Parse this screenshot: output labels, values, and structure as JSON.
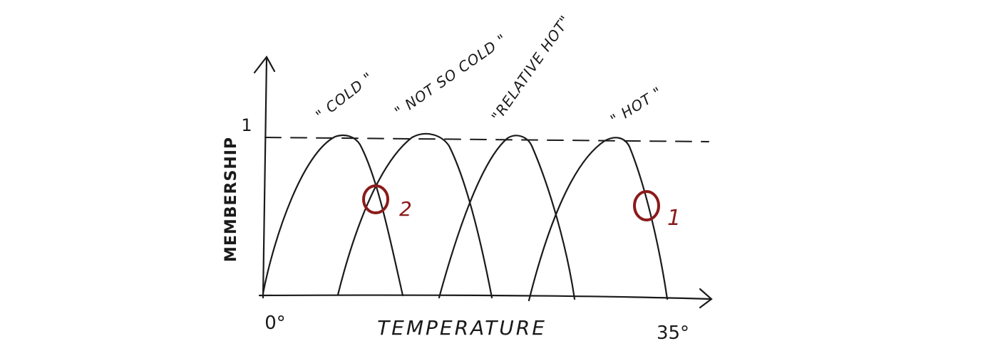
{
  "axes": {
    "y_label": "MEMBERSHIP",
    "x_label": "TEMPERATURE",
    "y_max_label": "1",
    "x_min_label": "0°",
    "x_max_label": "35°"
  },
  "sets": [
    {
      "label": "\" COLD \""
    },
    {
      "label": "\" NOT SO COLD \""
    },
    {
      "label": "\"RELATIVE HOT\""
    },
    {
      "label": "\" HOT \""
    }
  ],
  "markers": [
    {
      "letter": "O",
      "sub": "2"
    },
    {
      "letter": "O",
      "sub": "1"
    }
  ],
  "colors": {
    "ink": "#1a1a1a",
    "marker": "#8b1a1a"
  }
}
